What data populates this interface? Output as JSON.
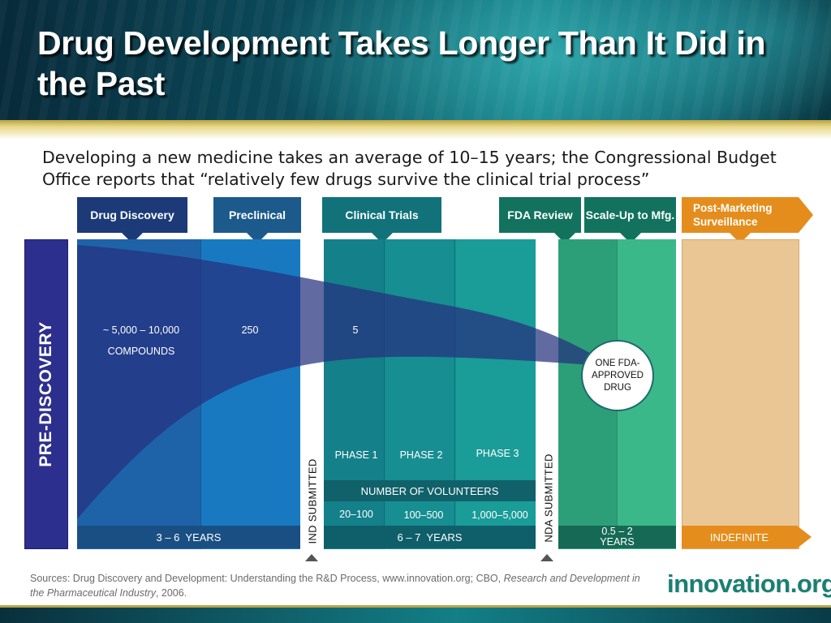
{
  "title": "Drug Development Takes Longer Than It Did in the Past",
  "subtitle": "Developing a new medicine takes an average of 10–15 years; the Congressional Budget Office reports that “relatively few drugs survive the clinical trial process”",
  "colors": {
    "navy": "#1c3a78",
    "blue": "#1d5a8c",
    "teal": "#12727a",
    "green": "#12725e",
    "orange": "#e58d1c",
    "pre_discovery": "#2d2f8e"
  },
  "stages": {
    "drug_discovery": "Drug Discovery",
    "preclinical": "Preclinical",
    "clinical_trials": "Clinical Trials",
    "fda_review": "FDA Review",
    "scale_up": "Scale-Up to Mfg.",
    "post_marketing": "Post-Marketing Surveillance"
  },
  "pre_discovery": "PRE-DISCOVERY",
  "funnel": {
    "compounds_count": "~ 5,000 – 10,000",
    "compounds_label": "COMPOUNDS",
    "preclinical_count": "250",
    "clinical_count": "5",
    "result": "ONE FDA-APPROVED DRUG"
  },
  "phases": [
    {
      "label": "PHASE 1",
      "volunteers": "20–100"
    },
    {
      "label": "PHASE 2",
      "volunteers": "100–500"
    },
    {
      "label": "PHASE 3",
      "volunteers": "1,000–5,000"
    }
  ],
  "volunteers_label": "NUMBER OF VOLUNTEERS",
  "milestones": {
    "ind": "IND SUBMITTED",
    "nda": "NDA SUBMITTED"
  },
  "durations": {
    "discovery_preclinical": "3 – 6  YEARS",
    "clinical": "6 – 7  YEARS",
    "review_scaleup": "0.5 – 2 YEARS",
    "post_marketing": "INDEFINITE"
  },
  "sources": {
    "prefix": "Sources: Drug Discovery and Development: Understanding the R&D Process, www.innovation.org; CBO, ",
    "italic": "Research and Development in the Pharmaceutical Industry",
    "suffix": ", 2006."
  },
  "logo": "innovation.org"
}
